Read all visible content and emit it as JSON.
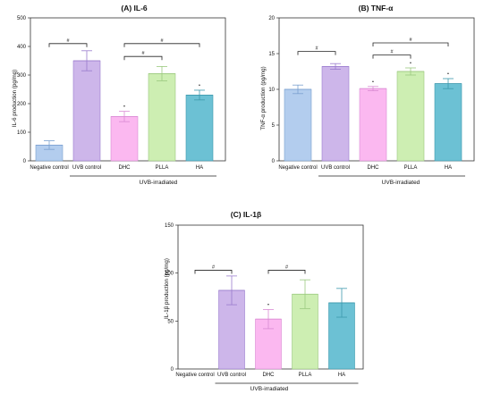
{
  "figure": {
    "panels": [
      {
        "title": "(A) IL-6",
        "group_label": "UVB-irradiated",
        "colors": [
          "#b3cdee",
          "#cdb6ea",
          "#fbb8f0",
          "#cdeeb2",
          "#6cc1d4"
        ],
        "edge_colors": [
          "#7aa0cf",
          "#9a7ccd",
          "#d98ad3",
          "#9bc97f",
          "#3d99ad"
        ]
      },
      {
        "title": "(B) TNF-α",
        "group_label": "UVB-irradiated",
        "colors": [
          "#b3cdee",
          "#cdb6ea",
          "#fbb8f0",
          "#cdeeb2",
          "#6cc1d4"
        ],
        "edge_colors": [
          "#7aa0cf",
          "#9a7ccd",
          "#d98ad3",
          "#9bc97f",
          "#3d99ad"
        ]
      },
      {
        "title": "(C) IL-1β",
        "group_label": "UVB-irradiated",
        "colors": [
          "#b3cdee",
          "#cdb6ea",
          "#fbb8f0",
          "#cdeeb2",
          "#6cc1d4"
        ],
        "edge_colors": [
          "#7aa0cf",
          "#9a7ccd",
          "#d98ad3",
          "#9bc97f",
          "#3d99ad"
        ]
      }
    ]
  },
  "chart_data": [
    {
      "type": "bar",
      "title": "(A) IL-6",
      "ylabel": "IL-6 production (pg/mg)",
      "xlabel": "",
      "categories": [
        "Negative control",
        "UVB control",
        "DHC",
        "PLLA",
        "HA"
      ],
      "values": [
        55,
        350,
        155,
        305,
        230
      ],
      "errors": [
        15,
        35,
        18,
        25,
        17
      ],
      "ylim": [
        0,
        500
      ],
      "yticks": [
        0,
        100,
        200,
        300,
        400,
        500
      ],
      "grid": false,
      "group_label": "UVB-irradiated",
      "group_span": [
        "UVB control",
        "HA"
      ],
      "significance": [
        {
          "from": "Negative control",
          "to": "UVB control",
          "label": "#",
          "y": 410
        },
        {
          "from": "DHC",
          "to": "PLLA",
          "label": "#",
          "y": 365
        },
        {
          "from": "DHC",
          "to": "HA",
          "label": "#",
          "y": 410
        }
      ],
      "markers": [
        {
          "category": "DHC",
          "label": "•"
        },
        {
          "category": "HA",
          "label": "•"
        }
      ]
    },
    {
      "type": "bar",
      "title": "(B) TNF-α",
      "ylabel": "TNF-α production (pg/mg)",
      "xlabel": "",
      "categories": [
        "Negative control",
        "UVB control",
        "DHC",
        "PLLA",
        "HA"
      ],
      "values": [
        10.0,
        13.2,
        10.1,
        12.5,
        10.8
      ],
      "errors": [
        0.6,
        0.4,
        0.3,
        0.5,
        0.7
      ],
      "ylim": [
        0,
        20
      ],
      "yticks": [
        0,
        5,
        10,
        15,
        20
      ],
      "grid": false,
      "group_label": "UVB-irradiated",
      "group_span": [
        "UVB control",
        "HA"
      ],
      "significance": [
        {
          "from": "Negative control",
          "to": "UVB control",
          "label": "#",
          "y": 15.3
        },
        {
          "from": "DHC",
          "to": "PLLA",
          "label": "#",
          "y": 14.8
        },
        {
          "from": "DHC",
          "to": "HA",
          "label": "#",
          "y": 16.5
        }
      ],
      "markers": [
        {
          "category": "DHC",
          "label": "•"
        },
        {
          "category": "PLLA",
          "label": "•"
        },
        {
          "category": "HA",
          "label": "•"
        }
      ]
    },
    {
      "type": "bar",
      "title": "(C) IL-1β",
      "ylabel": "IL-1β production (pg/mg)",
      "xlabel": "",
      "categories": [
        "Negative control",
        "UVB control",
        "DHC",
        "PLLA",
        "HA"
      ],
      "values": [
        0,
        82,
        52,
        78,
        69
      ],
      "errors": [
        0,
        15,
        10,
        15,
        15
      ],
      "ylim": [
        0,
        150
      ],
      "yticks": [
        0,
        50,
        100,
        150
      ],
      "grid": false,
      "group_label": "UVB-irradiated",
      "group_span": [
        "UVB control",
        "HA"
      ],
      "significance": [
        {
          "from": "Negative control",
          "to": "UVB control",
          "label": "#",
          "y": 103
        },
        {
          "from": "DHC",
          "to": "PLLA",
          "label": "#",
          "y": 103
        }
      ],
      "markers": [
        {
          "category": "DHC",
          "label": "•"
        }
      ]
    }
  ]
}
